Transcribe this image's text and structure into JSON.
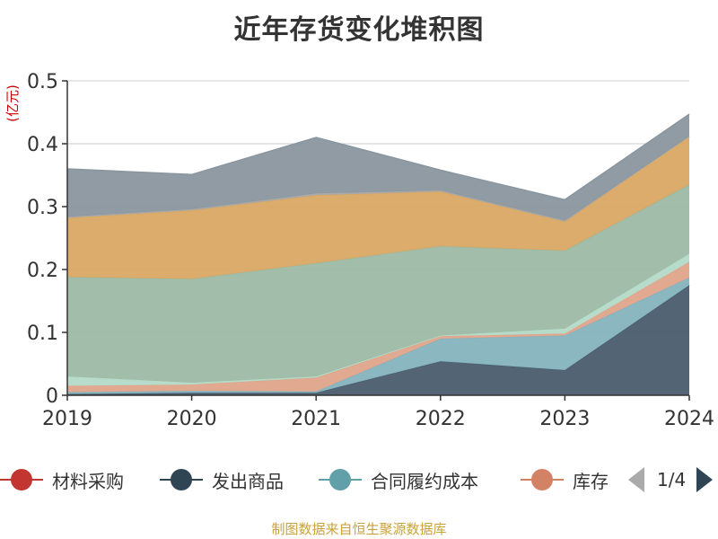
{
  "title": "近年存货变化堆积图",
  "source": "制图数据来自恒生聚源数据库",
  "legend_page": "1/4",
  "chart_data": {
    "type": "area",
    "stacked": true,
    "title": "近年存货变化堆积图",
    "ylabel": "(亿元)",
    "ylim": [
      0,
      0.5
    ],
    "yticks": [
      "0",
      "0.1",
      "0.2",
      "0.3",
      "0.4",
      "0.5"
    ],
    "grid": true,
    "categories": [
      "2019",
      "2020",
      "2021",
      "2022",
      "2023",
      "2024"
    ],
    "series": [
      {
        "name": "发出商品",
        "color": "#4a5d6e",
        "values": [
          0.002,
          0.004,
          0.004,
          0.054,
          0.04,
          0.175
        ]
      },
      {
        "name": "合同履约成本",
        "color": "#85b3be",
        "values": [
          0.003,
          0.003,
          0.002,
          0.036,
          0.055,
          0.012
        ]
      },
      {
        "name": "库存",
        "color": "#e0a48b",
        "values": [
          0.01,
          0.01,
          0.022,
          0.004,
          0.003,
          0.025
        ]
      },
      {
        "name": "",
        "color": "#b4dac8",
        "values": [
          0.015,
          0.003,
          0.002,
          0.001,
          0.008,
          0.013
        ]
      },
      {
        "name": "",
        "color": "#9dbaa5",
        "values": [
          0.158,
          0.165,
          0.18,
          0.142,
          0.124,
          0.11
        ]
      },
      {
        "name": "",
        "color": "#d9a863",
        "values": [
          0.094,
          0.109,
          0.108,
          0.087,
          0.046,
          0.077
        ]
      },
      {
        "name": "",
        "color": "#a8a8a8",
        "values": [
          0.002,
          0.002,
          0.003,
          0.002,
          0.002,
          0.0
        ]
      },
      {
        "name": "",
        "color": "#8a969f",
        "values": [
          0.076,
          0.055,
          0.089,
          0.032,
          0.033,
          0.035
        ]
      }
    ],
    "legend": [
      {
        "name": "材料采购",
        "color": "#c23531"
      },
      {
        "name": "发出商品",
        "color": "#2f4554"
      },
      {
        "name": "合同履约成本",
        "color": "#61a0a8"
      },
      {
        "name": "库存",
        "color": "#d48265"
      }
    ],
    "legend_position": "bottom"
  }
}
